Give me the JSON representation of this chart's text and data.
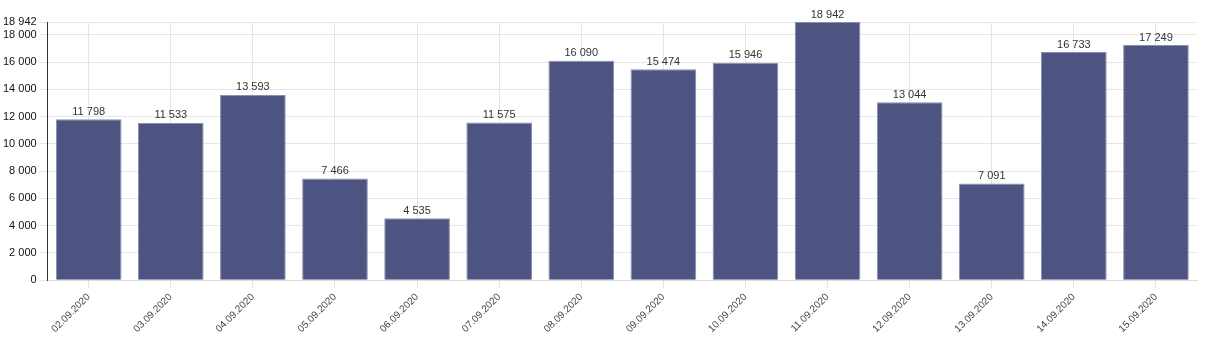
{
  "chart_data": {
    "type": "bar",
    "categories": [
      "02.09.2020",
      "03.09.2020",
      "04.09.2020",
      "05.09.2020",
      "06.09.2020",
      "07.09.2020",
      "08.09.2020",
      "09.09.2020",
      "10.09.2020",
      "11.09.2020",
      "12.09.2020",
      "13.09.2020",
      "14.09.2020",
      "15.09.2020"
    ],
    "values": [
      11798,
      11533,
      13593,
      7466,
      4535,
      11575,
      16090,
      15474,
      15946,
      18942,
      13044,
      7091,
      16733,
      17249
    ],
    "value_labels": [
      "11 798",
      "11 533",
      "13 593",
      "7 466",
      "4 535",
      "11 575",
      "16 090",
      "15 474",
      "15 946",
      "18 942",
      "13 044",
      "7 091",
      "16 733",
      "17 249"
    ],
    "color": "#4e5481",
    "ylim": [
      0,
      18942
    ],
    "yticks": [
      {
        "value": 0,
        "label": "0"
      },
      {
        "value": 2000,
        "label": "2 000"
      },
      {
        "value": 4000,
        "label": "4 000"
      },
      {
        "value": 6000,
        "label": "6 000"
      },
      {
        "value": 8000,
        "label": "8 000"
      },
      {
        "value": 10000,
        "label": "10 000"
      },
      {
        "value": 12000,
        "label": "12 000"
      },
      {
        "value": 14000,
        "label": "14 000"
      },
      {
        "value": 16000,
        "label": "16 000"
      },
      {
        "value": 18000,
        "label": "18 000"
      },
      {
        "value": 18942,
        "label": "18 942"
      }
    ],
    "grid": true,
    "legend": false
  }
}
